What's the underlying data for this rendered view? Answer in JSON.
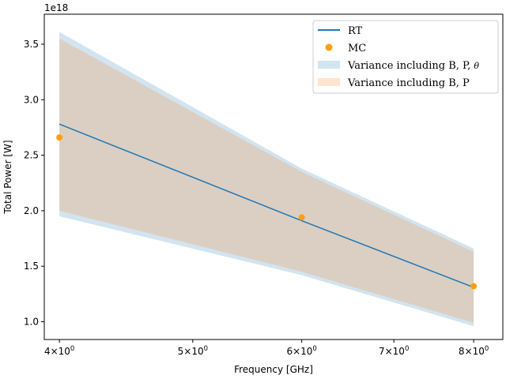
{
  "chart_data": {
    "type": "line",
    "title": "",
    "xlabel": "Frequency [GHz]",
    "ylabel": "Total Power [W]",
    "x_scale": "log",
    "y_offset_label": "1e18",
    "xlim": [
      3.9,
      8.4
    ],
    "ylim": [
      0.84,
      3.77
    ],
    "x_ticks": [
      {
        "value": 4,
        "base": "4×10",
        "exp": "0"
      },
      {
        "value": 5,
        "base": "5×10",
        "exp": "0"
      },
      {
        "value": 6,
        "base": "6×10",
        "exp": "0"
      },
      {
        "value": 7,
        "base": "7×10",
        "exp": "0"
      },
      {
        "value": 8,
        "base": "8×10",
        "exp": "0"
      }
    ],
    "y_ticks": [
      {
        "value": 1.0,
        "label": "1.0"
      },
      {
        "value": 1.5,
        "label": "1.5"
      },
      {
        "value": 2.0,
        "label": "2.0"
      },
      {
        "value": 2.5,
        "label": "2.5"
      },
      {
        "value": 3.0,
        "label": "3.0"
      },
      {
        "value": 3.5,
        "label": "3.5"
      }
    ],
    "x": [
      4,
      6,
      8
    ],
    "series": [
      {
        "name": "RT",
        "kind": "line",
        "color": "#1f77b4",
        "values": [
          2.78,
          1.91,
          1.31
        ]
      },
      {
        "name": "MC",
        "kind": "scatter",
        "color": "#ff9f0e",
        "values": [
          2.66,
          1.94,
          1.32
        ]
      }
    ],
    "bands": [
      {
        "name": "Variance including B, P, θ",
        "color": "#1f77b4",
        "opacity": 0.2,
        "upper": [
          3.61,
          2.38,
          1.66
        ],
        "lower": [
          1.95,
          1.42,
          0.96
        ]
      },
      {
        "name": "Variance including B, P",
        "color": "#ff7f0e",
        "opacity": 0.2,
        "upper": [
          3.55,
          2.35,
          1.63
        ],
        "lower": [
          2.0,
          1.45,
          0.99
        ]
      }
    ],
    "legend": {
      "position": "top-right",
      "entries": [
        {
          "label": "RT",
          "marker": "line",
          "color": "#1f77b4"
        },
        {
          "label": "MC",
          "marker": "dot",
          "color": "#ff9f0e"
        },
        {
          "label": "Variance including B, P, ",
          "suffix": "θ",
          "marker": "patch",
          "color": "#1f77b4"
        },
        {
          "label": "Variance including B, P",
          "suffix": "",
          "marker": "patch",
          "color": "#ff7f0e"
        }
      ]
    }
  }
}
